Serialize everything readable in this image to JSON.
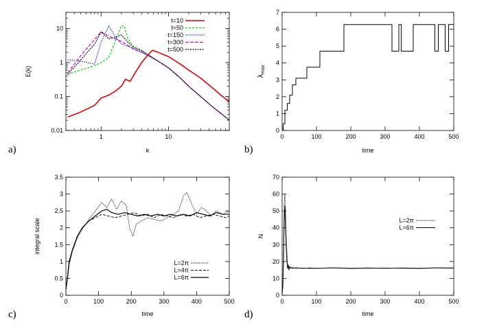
{
  "chart_data": [
    {
      "panel": "a)",
      "type": "line",
      "xlabel": "k",
      "ylabel": "E(k)",
      "xscale": "log",
      "yscale": "log",
      "xlim": [
        0.3,
        80
      ],
      "ylim": [
        0.01,
        30
      ],
      "xticks": [
        {
          "v": 1,
          "label": "1"
        },
        {
          "v": 10,
          "label": "10"
        }
      ],
      "yticks": [
        {
          "v": 0.01,
          "label": "0.01"
        },
        {
          "v": 0.1,
          "label": "0.1"
        },
        {
          "v": 1,
          "label": "1"
        },
        {
          "v": 10,
          "label": "10"
        }
      ],
      "legend_position": "top-right",
      "series": [
        {
          "name": "t=10",
          "color": "#e00000",
          "width": 1.6,
          "dash": "",
          "x": [
            0.32,
            0.5,
            0.8,
            1.0,
            1.3,
            1.6,
            2.0,
            2.3,
            2.7,
            3.2,
            4.0,
            5.0,
            5.8,
            7.0,
            8.5,
            10,
            15,
            20,
            30,
            45,
            60,
            80
          ],
          "y": [
            0.025,
            0.035,
            0.055,
            0.09,
            0.11,
            0.14,
            0.2,
            0.32,
            0.28,
            0.5,
            1.0,
            1.7,
            2.3,
            2.0,
            1.7,
            1.5,
            0.9,
            0.6,
            0.35,
            0.18,
            0.11,
            0.07
          ]
        },
        {
          "name": "t=50",
          "color": "#00d000",
          "width": 1.2,
          "dash": "3,2",
          "x": [
            0.32,
            0.5,
            0.8,
            1.0,
            1.3,
            1.6,
            2.0,
            2.2,
            2.5,
            3.0,
            4.0,
            5.0,
            7.0,
            10,
            15,
            20,
            30,
            45,
            60,
            80
          ],
          "y": [
            0.45,
            0.6,
            0.8,
            1.0,
            1.4,
            4.0,
            12,
            12,
            5.0,
            3.0,
            2.3,
            1.7,
            1.1,
            0.7,
            0.35,
            0.2,
            0.1,
            0.05,
            0.032,
            0.02
          ]
        },
        {
          "name": "t=150",
          "color": "#2020e0",
          "width": 1.2,
          "dash": "1.5,1.5",
          "x": [
            0.32,
            0.5,
            0.8,
            1.0,
            1.3,
            1.6,
            2.0,
            2.5,
            3.0,
            4.0,
            5.0,
            7.0,
            10,
            15,
            20,
            30,
            45,
            60,
            80
          ],
          "y": [
            1.2,
            1.1,
            0.9,
            4.0,
            12,
            6.0,
            3.5,
            3.0,
            2.6,
            2.0,
            1.6,
            1.1,
            0.7,
            0.35,
            0.2,
            0.1,
            0.05,
            0.032,
            0.02
          ]
        },
        {
          "name": "t=300",
          "color": "#d000d0",
          "width": 1.2,
          "dash": "5,2",
          "x": [
            0.32,
            0.5,
            0.7,
            1.0,
            1.3,
            1.6,
            2.0,
            2.5,
            3.0,
            4.0,
            5.0,
            7.0,
            10,
            15,
            20,
            30,
            45,
            60,
            80
          ],
          "y": [
            0.5,
            1.6,
            3.5,
            8.0,
            6.0,
            5.0,
            4.2,
            3.2,
            2.5,
            2.0,
            1.6,
            1.1,
            0.7,
            0.35,
            0.2,
            0.1,
            0.05,
            0.032,
            0.02
          ]
        },
        {
          "name": "t=500",
          "color": "#000000",
          "width": 1.2,
          "dash": "2,1.5",
          "x": [
            0.32,
            0.5,
            0.8,
            1.0,
            1.3,
            1.6,
            2.0,
            2.5,
            3.0,
            4.0,
            5.0,
            7.0,
            10,
            15,
            20,
            30,
            45,
            60,
            80
          ],
          "y": [
            0.45,
            1.2,
            3.5,
            8.0,
            5.0,
            5.5,
            6.5,
            4.0,
            2.8,
            2.2,
            1.7,
            1.1,
            0.7,
            0.35,
            0.2,
            0.1,
            0.05,
            0.032,
            0.02
          ]
        }
      ]
    },
    {
      "panel": "b)",
      "type": "line",
      "xlabel": "time",
      "ylabel": "λ_max",
      "ylabel_main": "λ",
      "ylabel_sub": "max",
      "xlim": [
        0,
        500
      ],
      "ylim": [
        0,
        7
      ],
      "xticks": [
        {
          "v": 0,
          "label": "0"
        },
        {
          "v": 100,
          "label": "100"
        },
        {
          "v": 200,
          "label": "200"
        },
        {
          "v": 300,
          "label": "300"
        },
        {
          "v": 400,
          "label": "400"
        },
        {
          "v": 500,
          "label": "500"
        }
      ],
      "yticks": [
        {
          "v": 0,
          "label": "0"
        },
        {
          "v": 1,
          "label": "1"
        },
        {
          "v": 2,
          "label": "2"
        },
        {
          "v": 3,
          "label": "3"
        },
        {
          "v": 4,
          "label": "4"
        },
        {
          "v": 5,
          "label": "5"
        },
        {
          "v": 6,
          "label": "6"
        },
        {
          "v": 7,
          "label": "7"
        }
      ],
      "series": [
        {
          "name": "lambda-max",
          "color": "#000000",
          "width": 1.0,
          "dash": "",
          "step": true,
          "x": [
            0,
            3,
            8,
            15,
            22,
            30,
            40,
            55,
            72,
            110,
            180,
            320,
            340,
            347,
            382,
            390,
            445,
            455,
            475,
            485,
            500
          ],
          "y": [
            0,
            0.4,
            1.2,
            1.6,
            2.1,
            2.7,
            3.1,
            3.1,
            3.75,
            4.7,
            6.28,
            4.7,
            6.28,
            4.7,
            6.28,
            6.28,
            4.7,
            6.28,
            4.7,
            6.28,
            6.28
          ]
        }
      ]
    },
    {
      "panel": "c)",
      "type": "line",
      "xlabel": "time",
      "ylabel": "integral scale",
      "xlim": [
        0,
        500
      ],
      "ylim": [
        0,
        3.5
      ],
      "xticks": [
        {
          "v": 0,
          "label": "0"
        },
        {
          "v": 100,
          "label": "100"
        },
        {
          "v": 200,
          "label": "200"
        },
        {
          "v": 300,
          "label": "300"
        },
        {
          "v": 400,
          "label": "400"
        },
        {
          "v": 500,
          "label": "500"
        }
      ],
      "yticks": [
        {
          "v": 0,
          "label": "0"
        },
        {
          "v": 0.5,
          "label": "0.5"
        },
        {
          "v": 1,
          "label": "1"
        },
        {
          "v": 1.5,
          "label": "1.5"
        },
        {
          "v": 2,
          "label": "2"
        },
        {
          "v": 2.5,
          "label": "2.5"
        },
        {
          "v": 3,
          "label": "3"
        },
        {
          "v": 3.5,
          "label": "3.5"
        }
      ],
      "legend_position": "bottom-right",
      "series": [
        {
          "name": "L=2π",
          "color": "#000000",
          "width": 0.9,
          "dash": "1.2,1.2",
          "x": [
            0,
            5,
            10,
            20,
            35,
            50,
            70,
            90,
            110,
            125,
            140,
            155,
            170,
            185,
            195,
            205,
            215,
            230,
            250,
            270,
            290,
            310,
            330,
            345,
            360,
            370,
            385,
            400,
            415,
            430,
            445,
            460,
            480,
            500
          ],
          "y": [
            0.15,
            0.5,
            0.9,
            1.3,
            1.7,
            1.95,
            2.25,
            2.5,
            2.75,
            2.6,
            2.85,
            2.55,
            2.8,
            2.65,
            2.0,
            1.75,
            2.1,
            2.2,
            2.3,
            2.25,
            2.2,
            2.3,
            2.4,
            2.5,
            2.95,
            3.05,
            2.7,
            2.4,
            2.6,
            2.5,
            2.35,
            2.5,
            2.4,
            2.5
          ]
        },
        {
          "name": "L=4π",
          "color": "#000000",
          "width": 0.9,
          "dash": "4,2",
          "x": [
            0,
            5,
            10,
            20,
            35,
            50,
            70,
            90,
            110,
            130,
            150,
            170,
            190,
            210,
            230,
            250,
            270,
            290,
            310,
            330,
            350,
            370,
            390,
            410,
            430,
            450,
            470,
            490,
            500
          ],
          "y": [
            0.15,
            0.5,
            0.95,
            1.35,
            1.75,
            2.0,
            2.2,
            2.3,
            2.4,
            2.35,
            2.3,
            2.35,
            2.4,
            2.45,
            2.35,
            2.4,
            2.3,
            2.4,
            2.35,
            2.3,
            2.4,
            2.35,
            2.4,
            2.3,
            2.35,
            2.4,
            2.35,
            2.3,
            2.35
          ]
        },
        {
          "name": "L=6π",
          "color": "#000000",
          "width": 1.2,
          "dash": "",
          "x": [
            0,
            5,
            10,
            20,
            35,
            50,
            70,
            90,
            110,
            125,
            140,
            160,
            180,
            200,
            220,
            240,
            260,
            280,
            300,
            320,
            340,
            360,
            380,
            400,
            420,
            440,
            460,
            480,
            500
          ],
          "y": [
            0.2,
            0.55,
            1.0,
            1.35,
            1.75,
            2.0,
            2.2,
            2.35,
            2.5,
            2.55,
            2.45,
            2.4,
            2.45,
            2.4,
            2.35,
            2.4,
            2.35,
            2.4,
            2.35,
            2.4,
            2.35,
            2.4,
            2.35,
            2.45,
            2.4,
            2.35,
            2.45,
            2.4,
            2.4
          ]
        }
      ]
    },
    {
      "panel": "d)",
      "type": "line",
      "xlabel": "time",
      "ylabel": "N",
      "xlim": [
        0,
        500
      ],
      "ylim": [
        0,
        70
      ],
      "xticks": [
        {
          "v": 0,
          "label": "0"
        },
        {
          "v": 100,
          "label": "100"
        },
        {
          "v": 200,
          "label": "200"
        },
        {
          "v": 300,
          "label": "300"
        },
        {
          "v": 400,
          "label": "400"
        },
        {
          "v": 500,
          "label": "500"
        }
      ],
      "yticks": [
        {
          "v": 0,
          "label": "0"
        },
        {
          "v": 10,
          "label": "10"
        },
        {
          "v": 20,
          "label": "20"
        },
        {
          "v": 30,
          "label": "30"
        },
        {
          "v": 40,
          "label": "40"
        },
        {
          "v": 50,
          "label": "50"
        },
        {
          "v": 60,
          "label": "60"
        },
        {
          "v": 70,
          "label": "70"
        }
      ],
      "legend_position": "center-right",
      "series": [
        {
          "name": "L=2π",
          "color": "#000000",
          "width": 0.9,
          "dash": "1.2,1.2",
          "x": [
            0,
            2,
            4,
            6,
            8,
            10,
            12,
            14,
            16,
            18,
            20,
            25,
            30,
            40,
            60,
            80,
            100,
            150,
            200,
            250,
            300,
            350,
            400,
            450,
            500
          ],
          "y": [
            2,
            8,
            30,
            55,
            60,
            50,
            35,
            25,
            18,
            16,
            17,
            16,
            16.5,
            16,
            16.2,
            15.8,
            16,
            16.2,
            15.8,
            16,
            16.2,
            16,
            15.8,
            16.2,
            16
          ]
        },
        {
          "name": "L=6π",
          "color": "#000000",
          "width": 1.0,
          "dash": "",
          "x": [
            0,
            2,
            4,
            6,
            8,
            10,
            12,
            14,
            16,
            18,
            20,
            22,
            25,
            30,
            40,
            60,
            80,
            100,
            150,
            200,
            250,
            300,
            350,
            400,
            450,
            500
          ],
          "y": [
            1,
            5,
            20,
            45,
            53,
            40,
            28,
            20,
            16,
            18,
            15,
            17,
            16.5,
            16,
            16.3,
            16,
            16.2,
            16,
            16.3,
            16,
            16.2,
            16,
            16.2,
            16,
            16.3,
            16.2
          ]
        }
      ]
    }
  ]
}
